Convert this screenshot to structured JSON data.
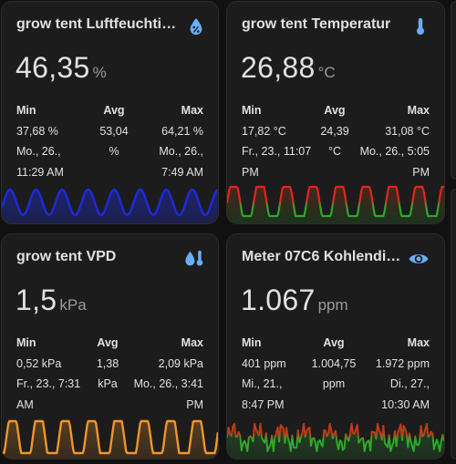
{
  "cards": [
    {
      "title": "grow tent Luftfeuchtig…",
      "icon": "water-percent-icon",
      "value": "46,35",
      "unit": "%",
      "min": {
        "label": "Min",
        "lines": [
          "37,68 %",
          "Mo., 26.,",
          "11:29 AM"
        ]
      },
      "avg": {
        "label": "Avg",
        "lines": [
          "53,04",
          "%"
        ]
      },
      "max": {
        "label": "Max",
        "lines": [
          "64,21 %",
          "Mo., 26.,",
          "7:49 AM"
        ]
      },
      "graph_color": "#1e2bd6"
    },
    {
      "title": "grow tent Temperatur",
      "icon": "thermometer-icon",
      "value": "26,88",
      "unit": "°C",
      "min": {
        "label": "Min",
        "lines": [
          "17,82 °C",
          "Fr., 23., 11:07",
          "PM"
        ]
      },
      "avg": {
        "label": "Avg",
        "lines": [
          "24,39",
          "°C"
        ]
      },
      "max": {
        "label": "Max",
        "lines": [
          "31,08 °C",
          "Mo., 26., 5:05",
          "PM"
        ]
      },
      "graph_colors": [
        "#2ea82e",
        "#e2251e"
      ]
    },
    {
      "title": "grow tent VPD",
      "icon": "water-thermometer-icon",
      "value": "1,5",
      "unit": "kPa",
      "min": {
        "label": "Min",
        "lines": [
          "0,52 kPa",
          "Fr., 23., 7:31",
          "AM"
        ]
      },
      "avg": {
        "label": "Avg",
        "lines": [
          "1,38",
          "kPa"
        ]
      },
      "max": {
        "label": "Max",
        "lines": [
          "2,09 kPa",
          "Mo., 26., 3:41",
          "PM"
        ]
      },
      "graph_color": "#f0962a"
    },
    {
      "title": "Meter 07C6 Kohlendio…",
      "icon": "eye-icon",
      "value": "1.067",
      "unit": "ppm",
      "min": {
        "label": "Min",
        "lines": [
          "401 ppm",
          "Mi., 21.,",
          "8:47 PM"
        ]
      },
      "avg": {
        "label": "Avg",
        "lines": [
          "1.004,75",
          "ppm"
        ]
      },
      "max": {
        "label": "Max",
        "lines": [
          "1.972 ppm",
          "Di., 27.,",
          "10:30 AM"
        ]
      },
      "graph_colors": [
        "#2ea82e",
        "#c0391b"
      ]
    }
  ],
  "colors": {
    "icon_blue": "#6aaefa",
    "background": "#111111",
    "card": "#1c1c1c"
  }
}
